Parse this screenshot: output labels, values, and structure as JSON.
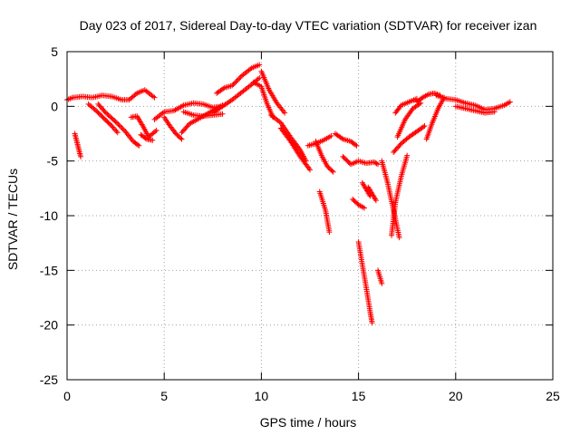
{
  "chart_data": {
    "type": "scatter",
    "title": "Day 023 of 2017, Sidereal Day-to-day VTEC variation (SDTVAR) for receiver izan",
    "xlabel": "GPS time / hours",
    "ylabel": "SDTVAR / TECUs",
    "xlim": [
      0,
      25
    ],
    "ylim": [
      -25,
      5
    ],
    "xticks": [
      0,
      5,
      10,
      15,
      20,
      25
    ],
    "yticks": [
      -25,
      -20,
      -15,
      -10,
      -5,
      0,
      5
    ],
    "grid": true,
    "marker": "+",
    "color": "#ff0000",
    "series": [
      {
        "name": "t1",
        "x": [
          0.0,
          0.3,
          0.8,
          1.3,
          1.8,
          2.3,
          2.8,
          3.2,
          3.6,
          4.0,
          4.5
        ],
        "y": [
          0.6,
          0.8,
          0.9,
          0.8,
          1.0,
          0.9,
          0.6,
          0.6,
          1.2,
          1.5,
          0.8
        ]
      },
      {
        "name": "t2",
        "x": [
          0.4,
          0.5,
          0.6,
          0.7
        ],
        "y": [
          -2.5,
          -3.2,
          -3.9,
          -4.6
        ]
      },
      {
        "name": "t3",
        "x": [
          1.1,
          1.5,
          1.9,
          2.3,
          2.6
        ],
        "y": [
          0.2,
          -0.4,
          -1.1,
          -1.8,
          -2.4
        ]
      },
      {
        "name": "t4",
        "x": [
          1.6,
          2.0,
          2.5,
          3.0,
          3.4,
          3.7
        ],
        "y": [
          0.2,
          -0.6,
          -1.4,
          -2.3,
          -3.2,
          -3.6
        ]
      },
      {
        "name": "t5",
        "x": [
          3.3,
          3.6,
          3.9,
          4.2,
          4.6
        ],
        "y": [
          -1.0,
          -0.9,
          -1.8,
          -2.8,
          -2.2
        ]
      },
      {
        "name": "t6",
        "x": [
          3.8,
          4.1,
          4.4
        ],
        "y": [
          -2.6,
          -3.0,
          -3.1
        ]
      },
      {
        "name": "t7",
        "x": [
          4.5,
          5.0,
          5.5,
          6.0,
          6.5,
          7.0,
          7.5,
          8.0
        ],
        "y": [
          -1.2,
          -0.5,
          -0.4,
          0.1,
          0.3,
          0.2,
          -0.1,
          0.0
        ]
      },
      {
        "name": "t8",
        "x": [
          5.0,
          5.3,
          5.6,
          5.9
        ],
        "y": [
          -1.0,
          -1.8,
          -2.5,
          -3.0
        ]
      },
      {
        "name": "t9",
        "x": [
          6.0,
          6.5,
          7.0,
          7.5,
          8.0
        ],
        "y": [
          -0.5,
          -0.8,
          -0.9,
          -0.8,
          -0.7
        ]
      },
      {
        "name": "t10",
        "x": [
          5.9,
          6.3,
          6.8,
          7.4,
          8.0
        ],
        "y": [
          -2.4,
          -1.6,
          -1.1,
          -0.5,
          0.1
        ]
      },
      {
        "name": "t11",
        "x": [
          7.7,
          8.1,
          8.5,
          9.0,
          9.5,
          9.9
        ],
        "y": [
          1.2,
          1.7,
          1.9,
          2.8,
          3.5,
          3.8
        ]
      },
      {
        "name": "t12",
        "x": [
          7.5,
          8.0,
          8.5,
          9.0,
          9.5,
          9.9
        ],
        "y": [
          -0.6,
          0.0,
          0.6,
          1.3,
          2.0,
          2.6
        ]
      },
      {
        "name": "t13",
        "x": [
          9.6,
          10.0,
          10.3,
          10.6
        ],
        "y": [
          2.2,
          1.8,
          0.2,
          -1.0
        ]
      },
      {
        "name": "t14",
        "x": [
          10.0,
          10.4,
          10.8,
          11.2
        ],
        "y": [
          3.2,
          1.5,
          0.3,
          -0.6
        ]
      },
      {
        "name": "t15",
        "x": [
          10.5,
          11.0,
          11.5,
          12.0,
          12.3
        ],
        "y": [
          -0.8,
          -1.5,
          -2.8,
          -4.0,
          -5.0
        ]
      },
      {
        "name": "t16",
        "x": [
          11.0,
          11.5,
          12.0,
          12.5
        ],
        "y": [
          -2.0,
          -3.2,
          -4.6,
          -5.8
        ]
      },
      {
        "name": "t17",
        "x": [
          12.4,
          12.8,
          13.2,
          13.6
        ],
        "y": [
          -3.6,
          -3.4,
          -3.1,
          -2.7
        ]
      },
      {
        "name": "t18",
        "x": [
          12.8,
          13.1,
          13.4,
          13.7
        ],
        "y": [
          -3.2,
          -4.5,
          -5.5,
          -6.0
        ]
      },
      {
        "name": "t19",
        "x": [
          13.0,
          13.3,
          13.5
        ],
        "y": [
          -7.8,
          -9.5,
          -11.5
        ]
      },
      {
        "name": "t20",
        "x": [
          13.8,
          14.2,
          14.6,
          14.9
        ],
        "y": [
          -2.5,
          -3.0,
          -3.2,
          -3.6
        ]
      },
      {
        "name": "t21",
        "x": [
          14.2,
          14.6,
          15.0,
          15.4,
          15.8,
          16.0
        ],
        "y": [
          -4.6,
          -5.3,
          -5.0,
          -5.2,
          -5.1,
          -5.3
        ]
      },
      {
        "name": "t22",
        "x": [
          14.7,
          15.0,
          15.3
        ],
        "y": [
          -8.5,
          -9.0,
          -9.3
        ]
      },
      {
        "name": "t23",
        "x": [
          15.2,
          15.4,
          15.6
        ],
        "y": [
          -7.0,
          -7.6,
          -8.2
        ]
      },
      {
        "name": "t24",
        "x": [
          15.0,
          15.2,
          15.4,
          15.6,
          15.7
        ],
        "y": [
          -12.4,
          -14.5,
          -16.6,
          -18.8,
          -19.8
        ]
      },
      {
        "name": "t25",
        "x": [
          15.5,
          15.7,
          15.9
        ],
        "y": [
          -7.4,
          -8.0,
          -8.6
        ]
      },
      {
        "name": "t26",
        "x": [
          16.0,
          16.1,
          16.2
        ],
        "y": [
          -15.0,
          -15.6,
          -16.2
        ]
      },
      {
        "name": "t27",
        "x": [
          16.2,
          16.5,
          16.8,
          17.1
        ],
        "y": [
          -5.0,
          -7.0,
          -9.5,
          -12.0
        ]
      },
      {
        "name": "t28",
        "x": [
          16.7,
          16.9,
          17.2,
          17.5
        ],
        "y": [
          -11.8,
          -8.8,
          -6.4,
          -4.5
        ]
      },
      {
        "name": "t29",
        "x": [
          16.8,
          17.2,
          17.6,
          18.0,
          18.4
        ],
        "y": [
          -4.2,
          -3.4,
          -2.8,
          -2.3,
          -1.8
        ]
      },
      {
        "name": "t30",
        "x": [
          17.0,
          17.4,
          17.8,
          18.2
        ],
        "y": [
          -2.8,
          -1.2,
          -0.2,
          0.3
        ]
      },
      {
        "name": "t31",
        "x": [
          16.9,
          17.2,
          17.6,
          18.0
        ],
        "y": [
          -0.6,
          0.1,
          0.4,
          0.7
        ]
      },
      {
        "name": "t32",
        "x": [
          18.0,
          18.3,
          18.6,
          18.9,
          19.2
        ],
        "y": [
          0.4,
          0.8,
          1.1,
          1.2,
          1.0
        ]
      },
      {
        "name": "t33",
        "x": [
          18.5,
          18.8,
          19.1,
          19.4
        ],
        "y": [
          -3.0,
          -1.5,
          -0.2,
          0.8
        ]
      },
      {
        "name": "t34",
        "x": [
          19.0,
          19.5,
          20.0,
          20.5,
          21.0,
          21.5,
          22.0,
          22.5,
          22.8
        ],
        "y": [
          1.0,
          0.7,
          0.6,
          0.3,
          0.1,
          -0.3,
          -0.2,
          0.1,
          0.4
        ]
      },
      {
        "name": "t35",
        "x": [
          20.0,
          20.5,
          21.0,
          21.5,
          22.0
        ],
        "y": [
          0.0,
          -0.2,
          -0.4,
          -0.6,
          -0.5
        ]
      }
    ]
  }
}
